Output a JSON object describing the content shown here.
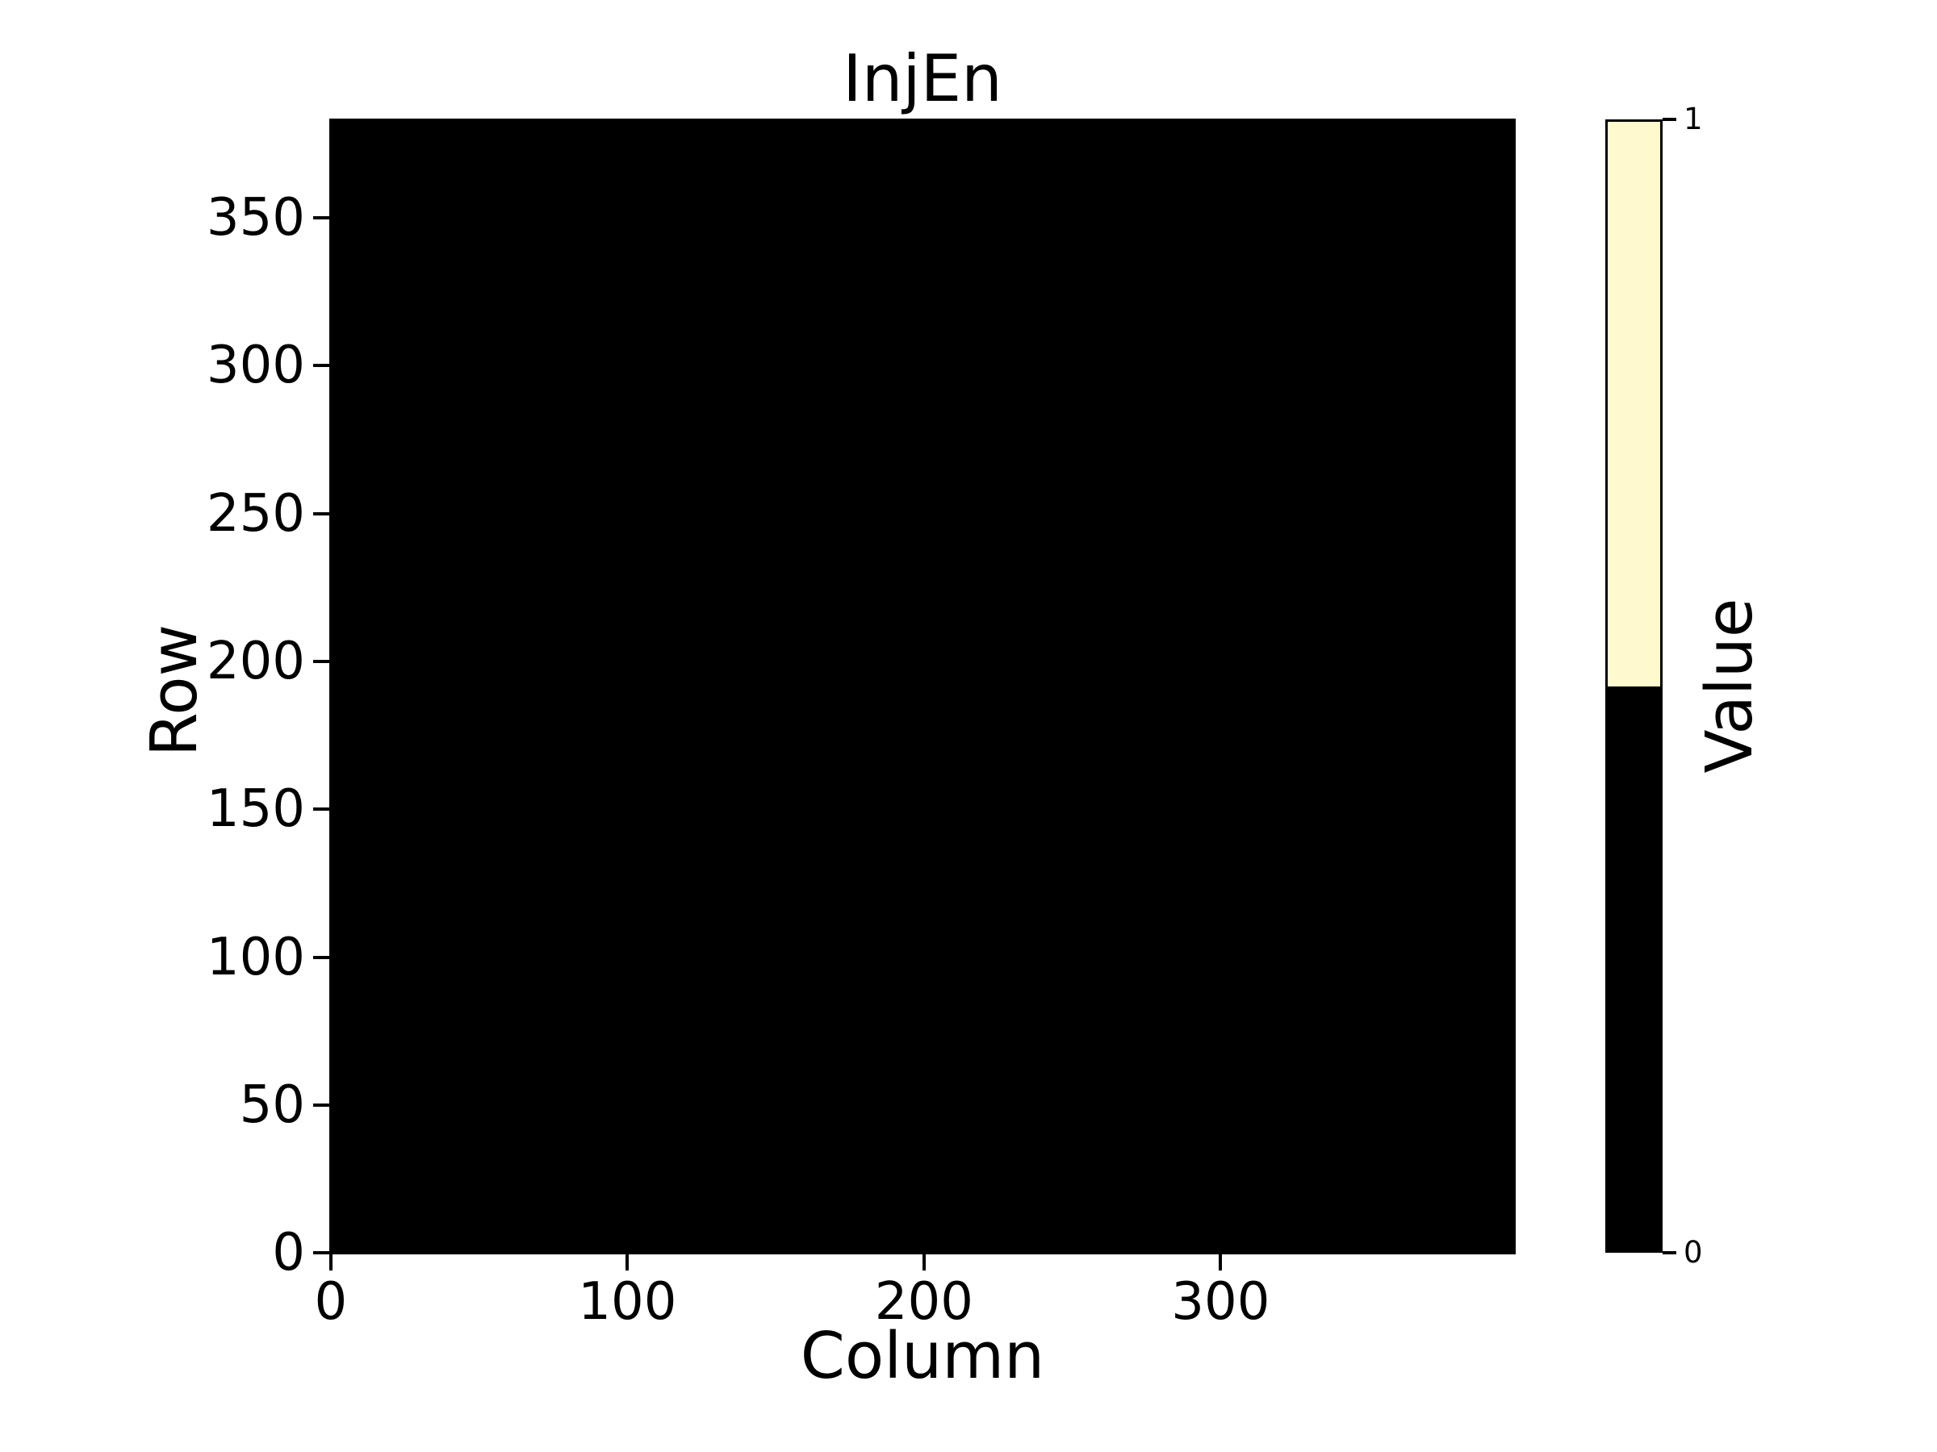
{
  "figure": {
    "background_color": "#ffffff",
    "text_color": "#000000"
  },
  "chart_data": {
    "type": "heatmap",
    "title": "InjEn",
    "xlabel": "Column",
    "ylabel": "Row",
    "colorbar_label": "Value",
    "n_cols": 400,
    "n_rows": 384,
    "xlim": [
      -0.5,
      399.5
    ],
    "ylim": [
      -0.5,
      383.5
    ],
    "x_tick_values": [
      0,
      100,
      200,
      300
    ],
    "x_tick_labels": [
      "0",
      "100",
      "200",
      "300"
    ],
    "y_tick_values": [
      0,
      50,
      100,
      150,
      200,
      250,
      300,
      350
    ],
    "y_tick_labels": [
      "0",
      "50",
      "100",
      "150",
      "200",
      "250",
      "300",
      "350"
    ],
    "values_uniform": 0,
    "values_description": "all 400x384 cells equal 0 (entire map black)",
    "value_colors": {
      "0": "#000000",
      "1": "#fffacd"
    },
    "colorbar_tick_values": [
      0,
      1
    ],
    "colorbar_tick_labels": [
      "0",
      "1"
    ],
    "colorbar_orientation": "vertical",
    "legend_position": "right-colorbar",
    "grid": false
  }
}
